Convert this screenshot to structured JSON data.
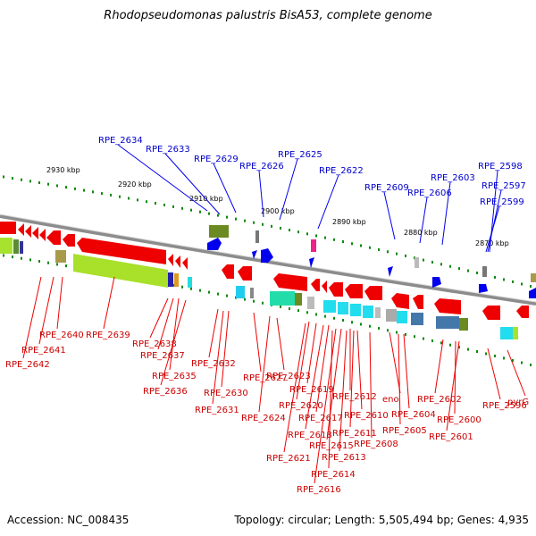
{
  "title": "Rhodopseudomonas palustris BisA53, complete genome",
  "footer": {
    "accession": "Accession: NC_008435",
    "info": "Topology: circular; Length: 5,505,494 bp; Genes: 4,935"
  },
  "colors": {
    "upper_labels": "#0000cc",
    "lower_labels": "#cc0000",
    "backbone": "#8c8c8c",
    "ticks": "#0a8a0a"
  },
  "kbp_ticks": [
    "2930 kbp",
    "2920 kbp",
    "2910 kbp",
    "2900 kbp",
    "2890 kbp",
    "2880 kbp",
    "2870 kbp"
  ],
  "upper_genes": [
    "RPE_2634",
    "RPE_2633",
    "RPE_2629",
    "RPE_2626",
    "RPE_2625",
    "RPE_2622",
    "RPE_2609",
    "RPE_2606",
    "RPE_2603",
    "RPE_2598",
    "RPE_2597",
    "RPE_2599"
  ],
  "lower_genes": [
    "RPE_2640",
    "RPE_2641",
    "RPE_2642",
    "RPE_2639",
    "RPE_2638",
    "RPE_2637",
    "RPE_2635",
    "RPE_2636",
    "RPE_2632",
    "RPE_2627",
    "RPE_2630",
    "RPE_2631",
    "RPE_2623",
    "RPE_2624",
    "RPE_2619",
    "RPE_2620",
    "RPE_2617",
    "RPE_2618",
    "RPE_2621",
    "RPE_2612",
    "RPE_2610",
    "RPE_2611",
    "RPE_2615",
    "RPE_2613",
    "RPE_2614",
    "RPE_2616",
    "eno",
    "RPE_2608",
    "RPE_2604",
    "RPE_2605",
    "RPE_2602",
    "RPE_2600",
    "RPE_2601",
    "RPE_2596",
    "pyrG"
  ]
}
